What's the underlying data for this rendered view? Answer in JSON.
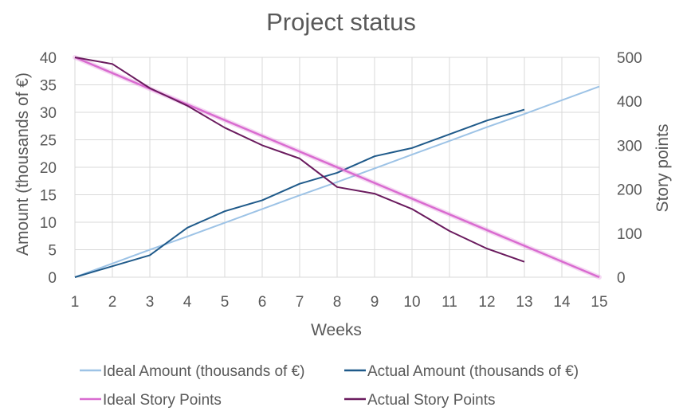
{
  "chart_data": {
    "type": "line",
    "title": "Project status",
    "xlabel": "Weeks",
    "ylabel": "Amount (thousands of €)",
    "y2label": "Story points",
    "x": [
      1,
      2,
      3,
      4,
      5,
      6,
      7,
      8,
      9,
      10,
      11,
      12,
      13,
      14,
      15
    ],
    "ylim": [
      0,
      40
    ],
    "yticks": [
      "0",
      "5",
      "10",
      "15",
      "20",
      "25",
      "30",
      "35",
      "40"
    ],
    "y2lim": [
      0,
      500
    ],
    "y2ticks": [
      "0",
      "100",
      "200",
      "300",
      "400",
      "500"
    ],
    "grid": true,
    "legend_position": "bottom",
    "series": [
      {
        "name": "Ideal Amount (thousands of €)",
        "axis": "left",
        "color": "#9dc3e6",
        "x": [
          1,
          2,
          3,
          4,
          5,
          6,
          7,
          8,
          9,
          10,
          11,
          12,
          13,
          14,
          15
        ],
        "values": [
          0,
          2.5,
          5,
          7.4,
          9.9,
          12.4,
          14.9,
          17.3,
          19.8,
          22.3,
          24.8,
          27.3,
          29.7,
          32.2,
          34.7
        ]
      },
      {
        "name": "Actual Amount (thousands of €)",
        "axis": "left",
        "color": "#1f5a8a",
        "x": [
          1,
          2,
          3,
          4,
          5,
          6,
          7,
          8,
          9,
          10,
          11,
          12,
          13
        ],
        "values": [
          0,
          2,
          4,
          9,
          12,
          14,
          17,
          19,
          22,
          23.5,
          26,
          28.5,
          30.5
        ]
      },
      {
        "name": "Ideal Story Points",
        "axis": "right",
        "color": "#d96bd0",
        "x": [
          1,
          15
        ],
        "values": [
          500,
          0
        ]
      },
      {
        "name": "Actual Story Points",
        "axis": "right",
        "color": "#6a1b5e",
        "x": [
          1,
          2,
          3,
          4,
          5,
          6,
          7,
          8,
          9,
          10,
          11,
          12,
          13
        ],
        "values": [
          500,
          485,
          430,
          390,
          340,
          300,
          270,
          205,
          190,
          155,
          105,
          65,
          35
        ]
      }
    ]
  }
}
